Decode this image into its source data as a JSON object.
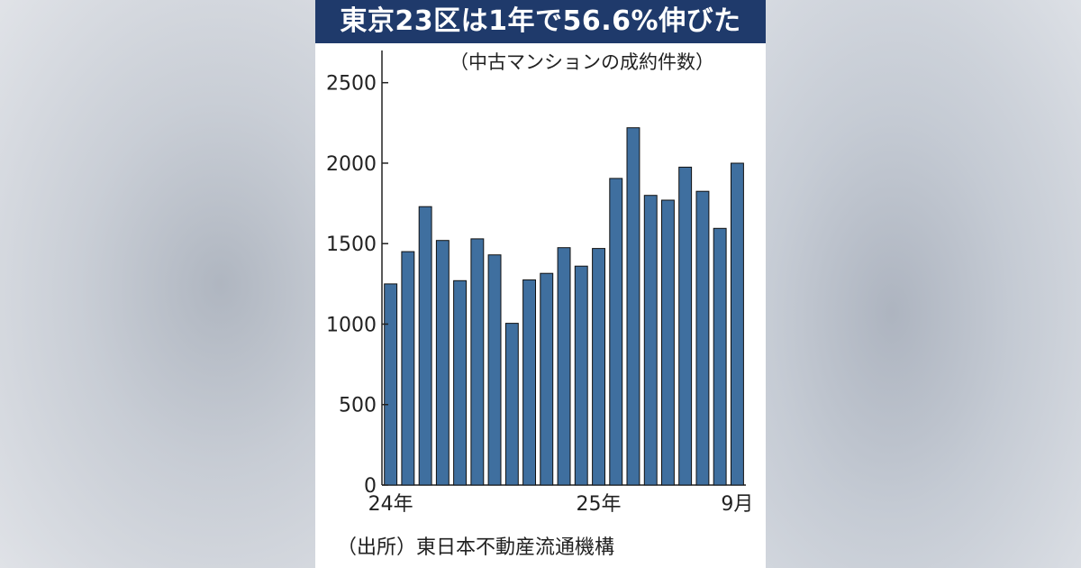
{
  "header": {
    "title": "東京23区は1年で56.6%伸びた"
  },
  "chart_data": {
    "type": "bar",
    "subtitle": "（中古マンションの成約件数）",
    "source": "（出所）東日本不動産流通機構",
    "x_tick_labels": [
      "24年",
      "25年",
      "9月"
    ],
    "y_ticks": [
      0,
      500,
      1000,
      1500,
      2000,
      2500
    ],
    "ylim": [
      0,
      2700
    ],
    "values": [
      1250,
      1450,
      1730,
      1520,
      1270,
      1530,
      1430,
      1005,
      1275,
      1315,
      1475,
      1360,
      1470,
      1905,
      2220,
      1800,
      1770,
      1975,
      1825,
      1595,
      2000
    ],
    "bar_color": "#3f6f9f",
    "grid": false
  }
}
